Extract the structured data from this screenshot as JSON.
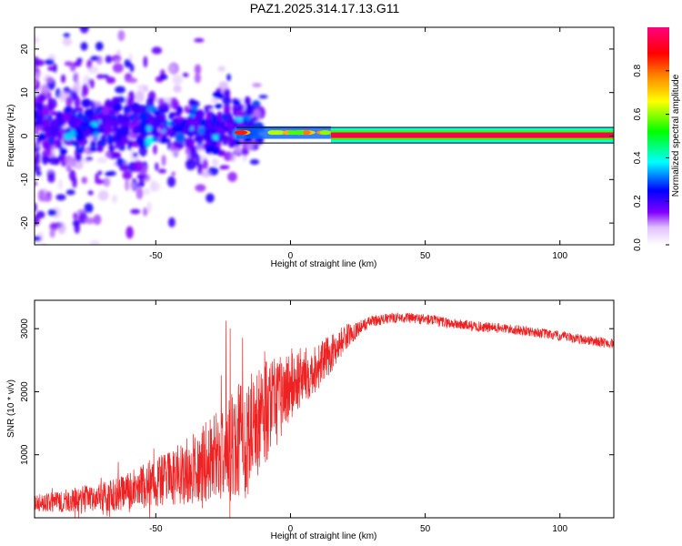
{
  "title": "PAZ1.2025.314.17.13.G11",
  "chart_data": [
    {
      "type": "heatmap",
      "name": "spectrogram",
      "xlabel": "Height of straight line (km)",
      "ylabel": "Frequency (Hz)",
      "xlim": [
        -95,
        120
      ],
      "ylim": [
        -25,
        25
      ],
      "xticks": [
        -50,
        0,
        50,
        100
      ],
      "yticks": [
        -20,
        -10,
        0,
        10,
        20
      ],
      "xtick_labels": [
        "-50",
        "0",
        "50",
        "100"
      ],
      "ytick_labels": [
        "-20",
        "-10",
        "0",
        "10",
        "20"
      ],
      "main_line": {
        "frequency_hz": 0.2,
        "x_from": 15,
        "x_to": 120,
        "amplitude": 0.95,
        "half_width_hz": 0.9
      },
      "transition_line": {
        "frequency_hz": 0.8,
        "x_from": -20,
        "x_to": 15,
        "amplitude": 0.75
      },
      "scatter_region": {
        "x_from": -95,
        "x_to": -15,
        "freq_center_hz": 2.5,
        "freq_spread_hz": 4,
        "typical_amplitude": 0.15
      },
      "colorbar": {
        "label": "Normalized spectral amplitude",
        "range": [
          0.0,
          1.0
        ],
        "ticks": [
          0.0,
          0.2,
          0.4,
          0.6,
          0.8
        ],
        "tick_labels": [
          "0.0",
          "0.2",
          "0.4",
          "0.6",
          "0.8"
        ],
        "colors": [
          "#ffffff",
          "#8000ff",
          "#0000ff",
          "#00ffff",
          "#00ff00",
          "#ffff00",
          "#ff8000",
          "#ff0000",
          "#ff0080"
        ]
      }
    },
    {
      "type": "line",
      "name": "snr",
      "xlabel": "Height of straight line (km)",
      "ylabel": "SNR (10 * v/v)",
      "xlim": [
        -95,
        120
      ],
      "ylim": [
        0,
        3450
      ],
      "xticks": [
        -50,
        0,
        50,
        100
      ],
      "yticks": [
        1000,
        2000,
        3000
      ],
      "xtick_labels": [
        "-50",
        "0",
        "50",
        "100"
      ],
      "ytick_labels": [
        "1000",
        "2000",
        "3000"
      ],
      "color": "#ee2222",
      "envelope": {
        "x": [
          -95,
          -80,
          -65,
          -50,
          -40,
          -30,
          -20,
          -12,
          -5,
          0,
          5,
          10,
          15,
          20,
          25,
          30,
          40,
          50,
          60,
          70,
          80,
          90,
          100,
          110,
          120
        ],
        "center": [
          230,
          280,
          360,
          560,
          700,
          920,
          1150,
          1550,
          1850,
          2100,
          2250,
          2400,
          2600,
          2850,
          3000,
          3120,
          3180,
          3150,
          3080,
          3030,
          3000,
          2950,
          2880,
          2820,
          2760
        ],
        "spread": [
          130,
          200,
          260,
          380,
          500,
          650,
          900,
          900,
          700,
          600,
          450,
          380,
          300,
          220,
          120,
          90,
          80,
          90,
          85,
          85,
          80,
          80,
          80,
          80,
          80
        ]
      }
    }
  ]
}
